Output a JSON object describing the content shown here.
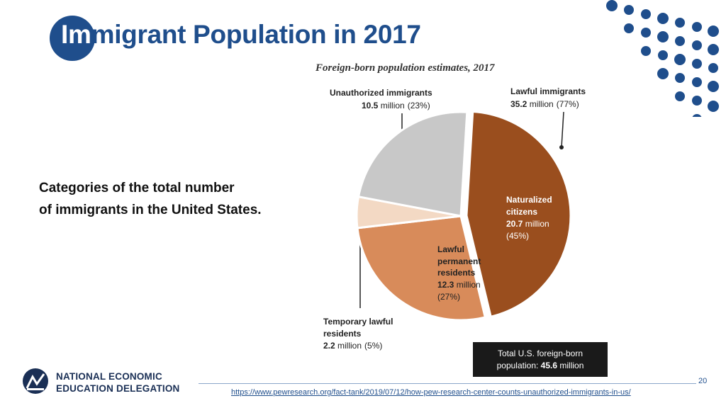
{
  "slide": {
    "title_first": "Im",
    "title_rest": "migrant Population in 2017",
    "subtitle_line1": "Categories of the total number",
    "subtitle_line2": "of immigrants in the United States.",
    "page_number": "20",
    "source_url": "https://www.pewresearch.org/fact-tank/2019/07/12/how-pew-research-center-counts-unauthorized-immigrants-in-us/",
    "logo": {
      "line1": "NATIONAL ECONOMIC",
      "line2": "EDUCATION DELEGATION"
    },
    "colors": {
      "brand_blue": "#1f4e8c",
      "naturalized": "#9a4e1e",
      "permanent": "#d88b5a",
      "temporary": "#f3d9c4",
      "unauthorized": "#c8c8c8"
    }
  },
  "chart_data": {
    "type": "pie",
    "title": "Foreign-born population estimates, 2017",
    "total_label_line1": "Total U.S. foreign-born",
    "total_label_prefix": "population: ",
    "total_value": "45.6",
    "total_label_suffix": " million",
    "groups": [
      {
        "name": "Unauthorized immigrants",
        "value": "10.5",
        "unit": " million",
        "pct": "(23%)"
      },
      {
        "name": "Lawful immigrants",
        "value": "35.2",
        "unit": " million",
        "pct": "(77%)"
      }
    ],
    "slices": [
      {
        "name_lines": [
          "Naturalized",
          "citizens"
        ],
        "value": 20.7,
        "value_text": "20.7",
        "unit": " million",
        "pct": "(45%)",
        "color": "#9a4e1e",
        "exploded": true
      },
      {
        "name_lines": [
          "Lawful",
          "permanent",
          "residents"
        ],
        "value": 12.3,
        "value_text": "12.3",
        "unit": " million",
        "pct": "(27%)",
        "color": "#d88b5a",
        "exploded": false
      },
      {
        "name_lines": [
          "Temporary lawful",
          "residents"
        ],
        "value": 2.2,
        "value_text": "2.2",
        "unit": " million",
        "pct": "(5%)",
        "color": "#f3d9c4",
        "exploded": false
      },
      {
        "name_lines": [
          "Unauthorized immigrants"
        ],
        "value": 10.5,
        "value_text": "10.5",
        "unit": " million",
        "pct": "(23%)",
        "color": "#c8c8c8",
        "exploded": false
      }
    ]
  }
}
